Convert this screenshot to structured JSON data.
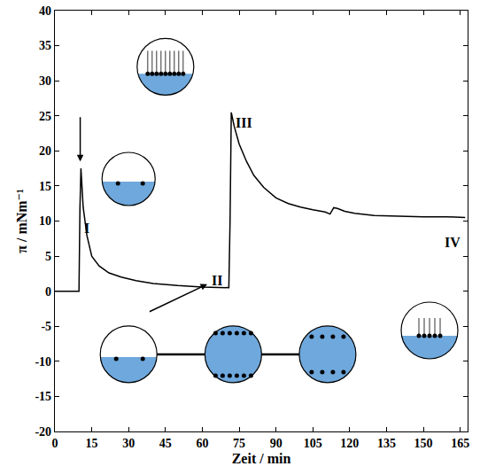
{
  "chart_data": {
    "type": "line",
    "x_label": "Zeit / min",
    "y_label": "π / mNm⁻¹",
    "color": "#000000",
    "x": [
      0,
      5,
      9.8,
      10.2,
      10.6,
      11.5,
      13,
      15,
      18,
      22,
      27,
      33,
      40,
      50,
      60,
      70.8,
      71.3,
      71.8,
      73,
      75,
      78,
      81,
      85,
      90,
      95,
      100,
      105,
      110,
      112,
      113.5,
      115,
      118,
      122,
      130,
      140,
      150,
      160,
      167
    ],
    "values": [
      0,
      0,
      0,
      12,
      17.5,
      12,
      8,
      5,
      3.6,
      2.6,
      2,
      1.5,
      1.1,
      0.8,
      0.6,
      0.5,
      10,
      25.5,
      23.5,
      21,
      18.5,
      16.5,
      14.8,
      13.3,
      12.5,
      12,
      11.6,
      11.3,
      11,
      11.9,
      11.8,
      11.4,
      11.1,
      10.8,
      10.7,
      10.6,
      10.6,
      10.5
    ],
    "xlim": [
      0,
      168
    ],
    "ylim": [
      -20,
      40
    ],
    "xticks": [
      0,
      15,
      30,
      45,
      60,
      75,
      90,
      105,
      120,
      135,
      150,
      165
    ],
    "yticks": [
      -20,
      -15,
      -10,
      -5,
      0,
      5,
      10,
      15,
      20,
      25,
      30,
      35,
      40
    ],
    "grid": false,
    "annotations": [
      {
        "text": "I",
        "x": 13,
        "y": 9
      },
      {
        "text": "II",
        "x": 66,
        "y": 1.5
      },
      {
        "text": "III",
        "x": 77,
        "y": 24
      },
      {
        "text": "IV",
        "x": 162,
        "y": 7
      }
    ]
  }
}
